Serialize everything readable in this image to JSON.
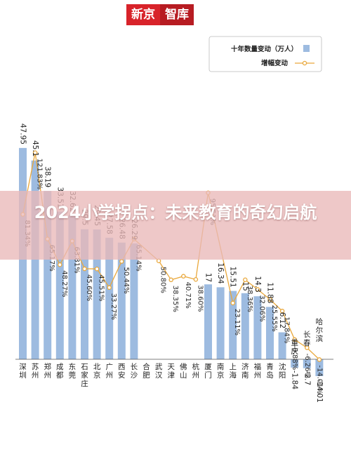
{
  "header": {
    "brand_part1": "新京",
    "brand_part2": "智库"
  },
  "overlay": {
    "title": "2024小学拐点：未来教育的奇幻启航"
  },
  "colors": {
    "bar": "#9dbbe0",
    "line": "#e9a83c",
    "brand": "#d8232a"
  },
  "chart_data": {
    "type": "bar",
    "categories": [
      "深圳",
      "苏州",
      "郑州",
      "成都",
      "东莞",
      "石家庄",
      "北京",
      "广州",
      "西安",
      "长沙",
      "合肥",
      "武汉",
      "天津",
      "佛山",
      "杭州",
      "厦门",
      "南京",
      "上海",
      "济南",
      "福州",
      "青岛",
      "沈阳",
      "重庆",
      "长春",
      "哈尔滨"
    ],
    "series": [
      {
        "name": "十年数量变动（万人）",
        "type": "bar",
        "values": [
          47.95,
          45.1,
          38.19,
          33.51,
          32.62,
          29.5,
          29.45,
          27.58,
          26.48,
          26.29,
          null,
          null,
          null,
          null,
          null,
          17,
          16.34,
          15.51,
          15,
          14.3,
          11.88,
          6.12,
          -1.84,
          -2.7,
          -14.01
        ],
        "labels": [
          "47.95",
          "45.1",
          "38.19",
          "33.51",
          "32.62",
          "29.5",
          "29.45",
          "27.58",
          "26.48",
          "26.29",
          "",
          "",
          "",
          "",
          "",
          "17",
          "16.34",
          "15.51",
          "15",
          "14.3",
          "11.88",
          "6.12",
          "-1.84",
          "-2.7",
          "-14.01"
        ]
      },
      {
        "name": "增幅变动",
        "type": "line",
        "values": [
          81.34,
          121.83,
          65.17,
          48.27,
          63.81,
          45.6,
          45.51,
          33.27,
          50.44,
          65.14,
          null,
          50.8,
          38.35,
          40.71,
          38.6,
          95.51,
          null,
          23.11,
          38.36,
          32.06,
          25.55,
          17.84,
          -0.88,
          -6.26,
          -14.01
        ],
        "labels": [
          "81.34%",
          "121.83%",
          "65.17%",
          "48.27%",
          "63.81%",
          "45.60%",
          "45.51%",
          "33.27%",
          "50.44%",
          "65.14%",
          "",
          "50.80%",
          "38.35%",
          "40.71%",
          "38.60%",
          "95.51%",
          "",
          "23.11%",
          "38.36%",
          "32.06%",
          "25.55%",
          "17.84%",
          "-0.88%",
          "-6.26%",
          "-14.01%"
        ]
      }
    ],
    "legend": {
      "position": "top-right",
      "items": [
        "十年数量变动（万人）",
        "增幅变动"
      ]
    },
    "grid": false
  }
}
